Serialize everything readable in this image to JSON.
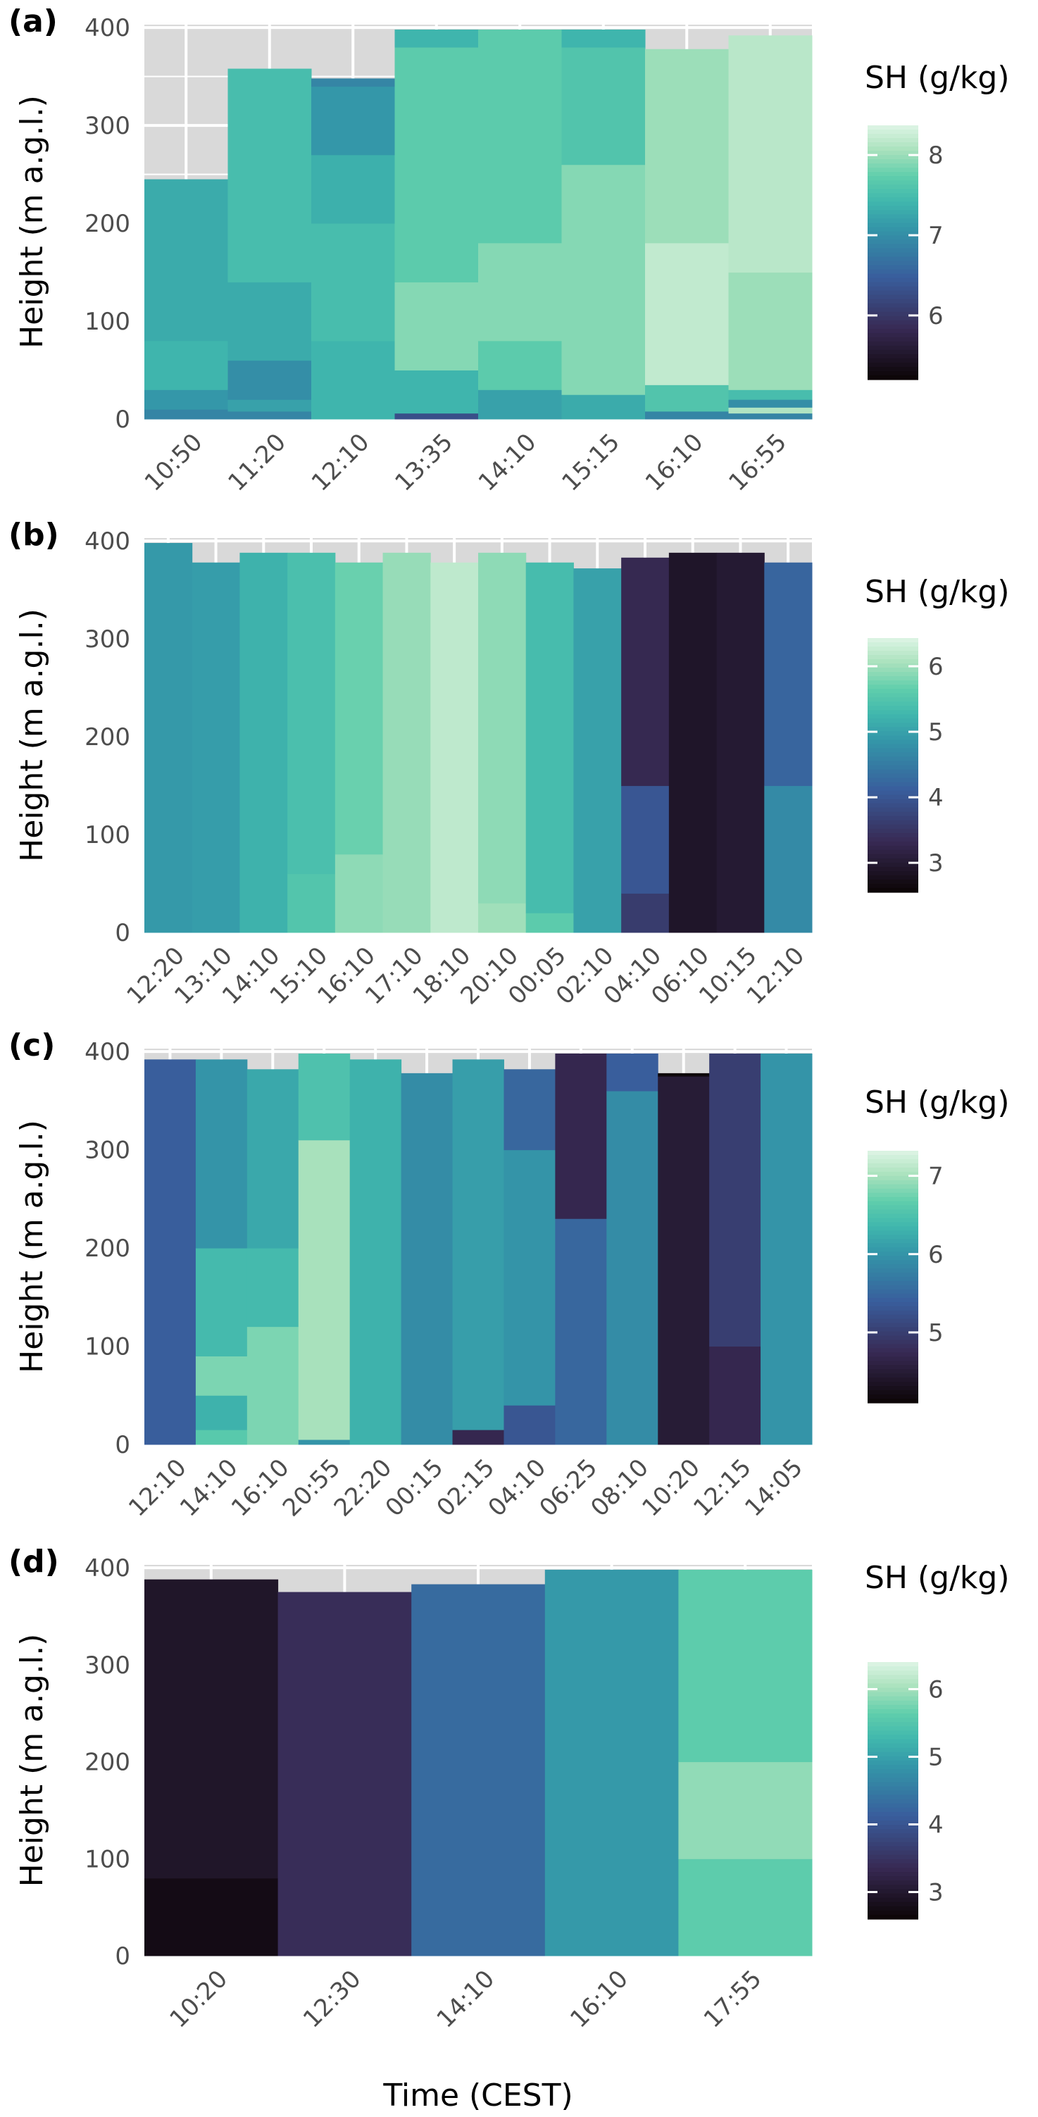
{
  "chart_data": [
    {
      "type": "heatmap",
      "panel_label": "(a)",
      "ylabel": "Height (m a.g.l.)",
      "ylim": [
        0,
        400
      ],
      "yticks": [
        "0",
        "100",
        "200",
        "300",
        "400"
      ],
      "legend_title": "SH (g/kg)",
      "color_range": [
        5.2,
        8.37
      ],
      "legend_ticks": [
        6,
        7,
        8
      ],
      "categories": [
        "10:50",
        "11:20",
        "12:10",
        "13:35",
        "14:10",
        "15:15",
        "16:10",
        "16:55"
      ],
      "profiles": [
        [
          [
            0,
            10,
            6.9
          ],
          [
            10,
            30,
            7.1
          ],
          [
            30,
            80,
            7.4
          ],
          [
            80,
            245,
            7.3
          ]
        ],
        [
          [
            0,
            8,
            6.9
          ],
          [
            8,
            20,
            7.2
          ],
          [
            20,
            60,
            7.0
          ],
          [
            60,
            140,
            7.3
          ],
          [
            140,
            358,
            7.5
          ]
        ],
        [
          [
            0,
            80,
            7.4
          ],
          [
            80,
            200,
            7.5
          ],
          [
            200,
            270,
            7.35
          ],
          [
            270,
            340,
            7.1
          ],
          [
            340,
            348,
            6.9
          ]
        ],
        [
          [
            0,
            6,
            6.3
          ],
          [
            6,
            50,
            7.4
          ],
          [
            50,
            140,
            7.9
          ],
          [
            140,
            380,
            7.7
          ],
          [
            380,
            398,
            7.4
          ]
        ],
        [
          [
            0,
            30,
            7.2
          ],
          [
            30,
            80,
            7.7
          ],
          [
            80,
            180,
            7.9
          ],
          [
            180,
            398,
            7.7
          ]
        ],
        [
          [
            0,
            25,
            7.3
          ],
          [
            25,
            260,
            7.9
          ],
          [
            260,
            380,
            7.6
          ],
          [
            380,
            398,
            7.4
          ]
        ],
        [
          [
            0,
            8,
            6.9
          ],
          [
            8,
            35,
            7.6
          ],
          [
            35,
            180,
            8.2
          ],
          [
            180,
            378,
            8.0
          ]
        ],
        [
          [
            0,
            6,
            6.9
          ],
          [
            6,
            12,
            8.1
          ],
          [
            12,
            20,
            7.0
          ],
          [
            20,
            30,
            7.5
          ],
          [
            30,
            150,
            8.0
          ],
          [
            150,
            392,
            8.15
          ]
        ]
      ]
    },
    {
      "type": "heatmap",
      "panel_label": "(b)",
      "ylabel": "Height (m a.g.l.)",
      "ylim": [
        0,
        400
      ],
      "yticks": [
        "0",
        "100",
        "200",
        "300",
        "400"
      ],
      "legend_title": "SH (g/kg)",
      "color_range": [
        2.55,
        6.43
      ],
      "legend_ticks": [
        3,
        4,
        5,
        6
      ],
      "categories": [
        "12:20",
        "13:10",
        "14:10",
        "15:10",
        "16:10",
        "17:10",
        "18:10",
        "20:10",
        "00:05",
        "02:10",
        "04:10",
        "06:10",
        "10:15",
        "12:10"
      ],
      "profiles": [
        [
          [
            0,
            398,
            4.9
          ]
        ],
        [
          [
            0,
            378,
            4.95
          ]
        ],
        [
          [
            0,
            388,
            5.2
          ]
        ],
        [
          [
            0,
            60,
            5.5
          ],
          [
            60,
            388,
            5.4
          ]
        ],
        [
          [
            0,
            80,
            5.9
          ],
          [
            80,
            378,
            5.7
          ]
        ],
        [
          [
            0,
            388,
            5.95
          ]
        ],
        [
          [
            0,
            378,
            6.2
          ]
        ],
        [
          [
            0,
            30,
            6.0
          ],
          [
            30,
            388,
            5.9
          ]
        ],
        [
          [
            0,
            20,
            5.6
          ],
          [
            20,
            378,
            5.35
          ]
        ],
        [
          [
            0,
            372,
            5.0
          ]
        ],
        [
          [
            0,
            40,
            3.6
          ],
          [
            40,
            150,
            4.0
          ],
          [
            150,
            383,
            3.3
          ]
        ],
        [
          [
            0,
            20,
            2.9
          ],
          [
            20,
            388,
            2.9
          ]
        ],
        [
          [
            0,
            388,
            3.0
          ]
        ],
        [
          [
            0,
            150,
            4.7
          ],
          [
            150,
            378,
            4.2
          ]
        ]
      ]
    },
    {
      "type": "heatmap",
      "panel_label": "(c)",
      "ylabel": "Height (m a.g.l.)",
      "ylim": [
        0,
        400
      ],
      "yticks": [
        "0",
        "100",
        "200",
        "300",
        "400"
      ],
      "legend_title": "SH (g/kg)",
      "color_range": [
        4.1,
        7.32
      ],
      "legend_ticks": [
        5,
        6,
        7
      ],
      "categories": [
        "12:10",
        "14:10",
        "16:10",
        "20:55",
        "22:20",
        "00:15",
        "02:15",
        "04:10",
        "06:25",
        "08:10",
        "10:20",
        "12:15",
        "14:05"
      ],
      "profiles": [
        [
          [
            0,
            392,
            5.4
          ]
        ],
        [
          [
            0,
            15,
            6.6
          ],
          [
            15,
            50,
            6.3
          ],
          [
            50,
            90,
            6.8
          ],
          [
            90,
            200,
            6.4
          ],
          [
            200,
            392,
            6.0
          ]
        ],
        [
          [
            0,
            120,
            6.8
          ],
          [
            120,
            200,
            6.4
          ],
          [
            200,
            382,
            6.2
          ]
        ],
        [
          [
            0,
            5,
            6.0
          ],
          [
            5,
            310,
            7.0
          ],
          [
            310,
            398,
            6.5
          ]
        ],
        [
          [
            0,
            392,
            6.3
          ]
        ],
        [
          [
            0,
            378,
            5.9
          ]
        ],
        [
          [
            0,
            15,
            4.7
          ],
          [
            15,
            392,
            6.1
          ]
        ],
        [
          [
            0,
            40,
            5.3
          ],
          [
            40,
            300,
            6.0
          ],
          [
            300,
            382,
            5.5
          ]
        ],
        [
          [
            0,
            230,
            5.5
          ],
          [
            230,
            398,
            4.7
          ]
        ],
        [
          [
            0,
            360,
            5.9
          ],
          [
            360,
            398,
            5.4
          ]
        ],
        [
          [
            0,
            375,
            4.5
          ],
          [
            375,
            378,
            4.15
          ]
        ],
        [
          [
            0,
            100,
            4.7
          ],
          [
            100,
            398,
            5.0
          ]
        ],
        [
          [
            0,
            398,
            6.0
          ]
        ]
      ]
    },
    {
      "type": "heatmap",
      "panel_label": "(d)",
      "ylabel": "Height (m a.g.l.)",
      "xlabel": "Time (CEST)",
      "ylim": [
        0,
        400
      ],
      "yticks": [
        "0",
        "100",
        "200",
        "300",
        "400"
      ],
      "legend_title": "SH (g/kg)",
      "color_range": [
        2.6,
        6.4
      ],
      "legend_ticks": [
        3,
        4,
        5,
        6
      ],
      "categories": [
        "10:20",
        "12:30",
        "14:10",
        "16:10",
        "17:55"
      ],
      "profiles": [
        [
          [
            0,
            80,
            2.75
          ],
          [
            80,
            388,
            2.95
          ]
        ],
        [
          [
            0,
            375,
            3.4
          ]
        ],
        [
          [
            0,
            383,
            4.3
          ]
        ],
        [
          [
            0,
            398,
            4.9
          ]
        ],
        [
          [
            0,
            100,
            5.6
          ],
          [
            100,
            200,
            5.9
          ],
          [
            200,
            398,
            5.6
          ]
        ]
      ]
    }
  ]
}
